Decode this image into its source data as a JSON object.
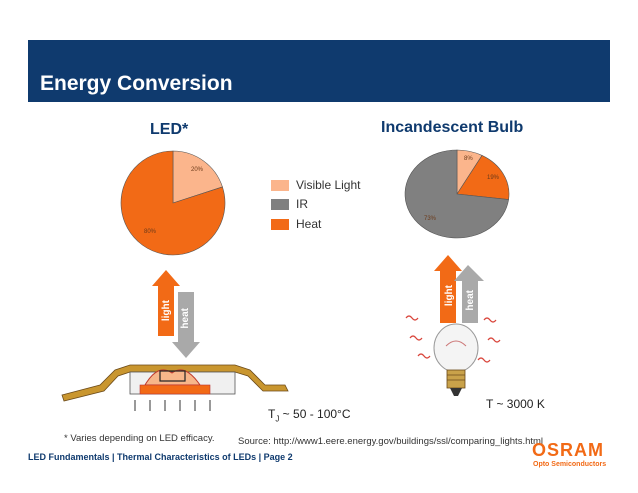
{
  "header": {
    "title": "Energy Conversion"
  },
  "led": {
    "title": "LED*",
    "slices": [
      {
        "label": "20%",
        "value": 20,
        "category": "Visible Light",
        "color": "#fbb58c"
      },
      {
        "label": "80%",
        "value": 80,
        "category": "Heat",
        "color": "#f26a16"
      }
    ]
  },
  "bulb": {
    "title": "Incandescent Bulb",
    "slices": [
      {
        "label": "8%",
        "value": 8,
        "category": "Visible Light",
        "color": "#fbb58c"
      },
      {
        "label": "19%",
        "value": 19,
        "category": "Heat",
        "color": "#f26a16"
      },
      {
        "label": "73%",
        "value": 73,
        "category": "IR",
        "color": "#808080"
      }
    ]
  },
  "legend": [
    {
      "label": "Visible Light",
      "color": "#fbb58c"
    },
    {
      "label": "IR",
      "color": "#808080"
    },
    {
      "label": "Heat",
      "color": "#f26a16"
    }
  ],
  "arrows": {
    "light": "light",
    "heat": "heat"
  },
  "temps": {
    "led_prefix": "T",
    "led_sub": "J",
    "led_rest": " ~ 50 - 100°C",
    "bulb": "T ~ 3000 K"
  },
  "notes": {
    "footnote": "* Varies depending on LED efficacy.",
    "source": "Source: http://www1.eere.energy.gov/buildings/ssl/comparing_lights.html"
  },
  "footer": {
    "text": "LED Fundamentals  |  Thermal Characteristics of LEDs  |  Page 2"
  },
  "brand": {
    "name": "OSRAM",
    "subtitle": "Opto Semiconductors",
    "color": "#f26a16"
  },
  "chart_data": [
    {
      "type": "pie",
      "title": "LED*",
      "categories": [
        "Visible Light",
        "Heat"
      ],
      "values": [
        20,
        80
      ]
    },
    {
      "type": "pie",
      "title": "Incandescent Bulb",
      "categories": [
        "Visible Light",
        "Heat",
        "IR"
      ],
      "values": [
        8,
        19,
        73
      ]
    }
  ]
}
